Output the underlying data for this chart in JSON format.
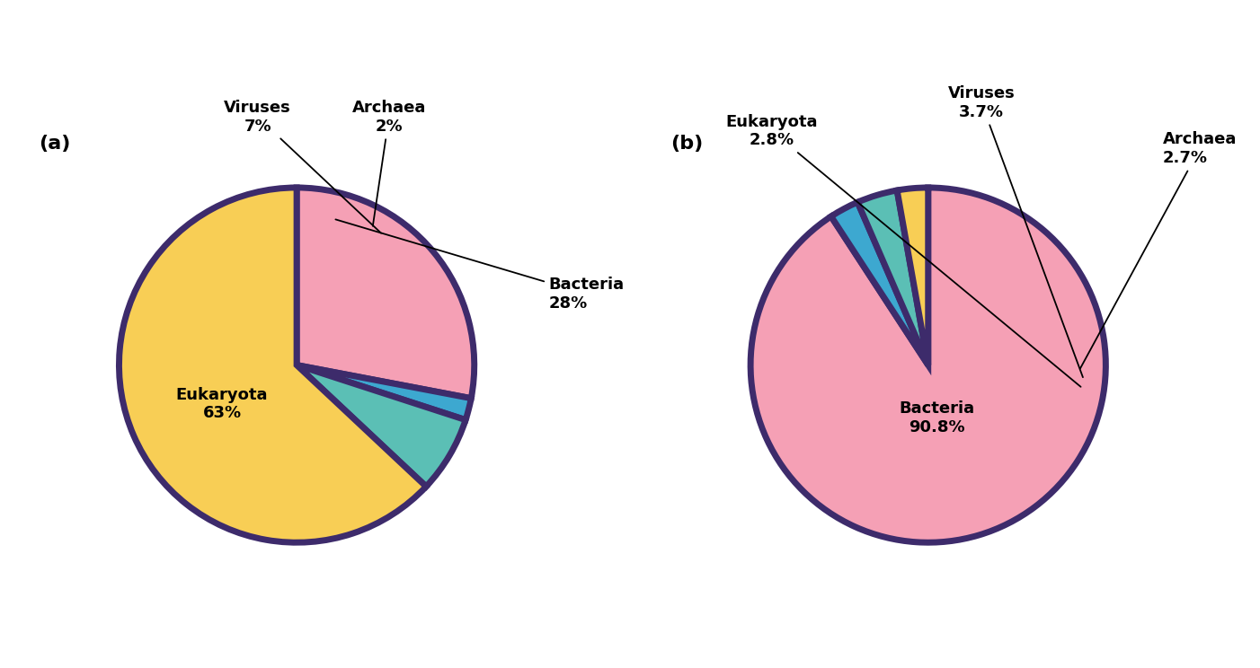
{
  "chart_a": {
    "label": "(a)",
    "slices": [
      {
        "name": "Bacteria",
        "pct": 28,
        "color": "#F5A0B5"
      },
      {
        "name": "Archaea",
        "pct": 2,
        "color": "#3DA8D0"
      },
      {
        "name": "Viruses",
        "pct": 7,
        "color": "#5BBFB5"
      },
      {
        "name": "Eukaryota",
        "pct": 63,
        "color": "#F8CE55"
      }
    ],
    "startangle": 90,
    "counterclock": false
  },
  "chart_b": {
    "label": "(b)",
    "slices": [
      {
        "name": "Bacteria",
        "pct": 90.8,
        "color": "#F5A0B5"
      },
      {
        "name": "Archaea",
        "pct": 2.7,
        "color": "#3DA8D0"
      },
      {
        "name": "Viruses",
        "pct": 3.7,
        "color": "#5BBFB5"
      },
      {
        "name": "Eukaryota",
        "pct": 2.8,
        "color": "#F8CE55"
      }
    ],
    "startangle": 90,
    "counterclock": false
  },
  "edge_color": "#3D2B6B",
  "edge_linewidth": 5,
  "annotation_fontsize": 13,
  "subplot_label_fontsize": 16
}
